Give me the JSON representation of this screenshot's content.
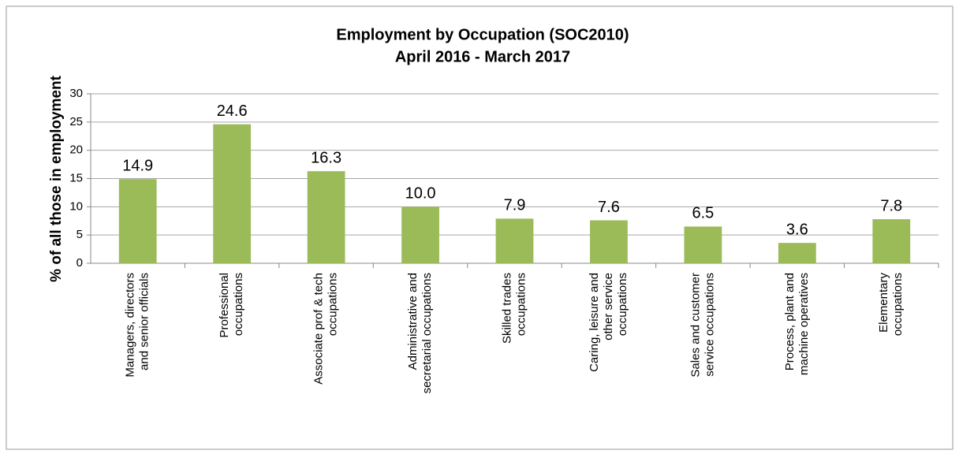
{
  "chart_data": {
    "type": "bar",
    "title": "Employment by Occupation (SOC2010)",
    "subtitle": "April 2016 - March 2017",
    "y_label": "% of all those in employment",
    "categories": [
      [
        "Managers, directors",
        "and senior officials"
      ],
      [
        "Professional",
        "occupations"
      ],
      [
        "Associate prof & tech",
        "occupations"
      ],
      [
        "Administrative and",
        "secretarial occupations"
      ],
      [
        "Skilled trades",
        "occupations"
      ],
      [
        "Caring, leisure and",
        "other service",
        "occupations"
      ],
      [
        "Sales and customer",
        "service occupations"
      ],
      [
        "Process, plant and",
        "machine operatives"
      ],
      [
        "Elementary",
        "occupations"
      ]
    ],
    "values": [
      14.9,
      24.6,
      16.3,
      10,
      7.9,
      7.6,
      6.5,
      3.6,
      7.8
    ],
    "value_labels": [
      "14.9",
      "24.6",
      "16.3",
      "10.0",
      "7.9",
      "7.6",
      "6.5",
      "3.6",
      "7.8"
    ],
    "color": "#9bbb59",
    "ylim": [
      0,
      30
    ],
    "yticks": [
      0,
      5,
      10,
      15,
      20,
      25,
      30
    ],
    "grid": true
  }
}
